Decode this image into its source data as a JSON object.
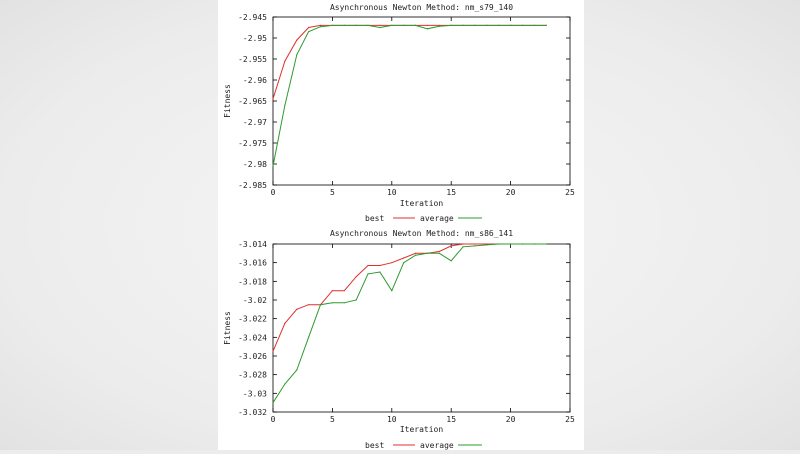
{
  "chart_data": [
    {
      "type": "line",
      "title": "Asynchronous Newton Method: nm_s79_140",
      "xlabel": "Iteration",
      "ylabel": "Fitness",
      "xlim": [
        0,
        25
      ],
      "ylim": [
        -2.985,
        -2.945
      ],
      "xticks": [
        0,
        5,
        10,
        15,
        20,
        25
      ],
      "xtick_labels": [
        "0",
        "5",
        "10",
        "15",
        "20",
        "25"
      ],
      "yticks": [
        -2.945,
        -2.95,
        -2.955,
        -2.96,
        -2.965,
        -2.97,
        -2.975,
        -2.98,
        -2.985
      ],
      "ytick_labels": [
        "-2.945",
        "-2.95",
        "-2.955",
        "-2.96",
        "-2.965",
        "-2.97",
        "-2.975",
        "-2.98",
        "-2.985"
      ],
      "grid": false,
      "legend_position": "bottom-center",
      "x": [
        0,
        1,
        2,
        3,
        4,
        5,
        6,
        7,
        8,
        9,
        10,
        11,
        12,
        13,
        14,
        15,
        16,
        17,
        18,
        19,
        20,
        21,
        22,
        23
      ],
      "series": [
        {
          "name": "best",
          "color": "#e03030",
          "values": [
            -2.9645,
            -2.9555,
            -2.9505,
            -2.9475,
            -2.947,
            -2.947,
            -2.947,
            -2.947,
            -2.947,
            -2.947,
            -2.947,
            -2.947,
            -2.947,
            -2.947,
            -2.947,
            -2.947,
            -2.947,
            -2.947,
            -2.947,
            -2.947,
            -2.947,
            -2.947,
            -2.947,
            -2.947
          ]
        },
        {
          "name": "average",
          "color": "#2e9a2e",
          "values": [
            -2.9805,
            -2.966,
            -2.954,
            -2.9485,
            -2.9473,
            -2.947,
            -2.947,
            -2.947,
            -2.947,
            -2.9475,
            -2.947,
            -2.947,
            -2.947,
            -2.9478,
            -2.9472,
            -2.947,
            -2.947,
            -2.947,
            -2.947,
            -2.947,
            -2.947,
            -2.947,
            -2.947,
            -2.947
          ]
        }
      ]
    },
    {
      "type": "line",
      "title": "Asynchronous Newton Method: nm_s86_141",
      "xlabel": "Iteration",
      "ylabel": "Fitness",
      "xlim": [
        0,
        25
      ],
      "ylim": [
        -3.032,
        -3.014
      ],
      "xticks": [
        0,
        5,
        10,
        15,
        20,
        25
      ],
      "xtick_labels": [
        "0",
        "5",
        "10",
        "15",
        "20",
        "25"
      ],
      "yticks": [
        -3.014,
        -3.016,
        -3.018,
        -3.02,
        -3.022,
        -3.024,
        -3.026,
        -3.028,
        -3.03,
        -3.032
      ],
      "ytick_labels": [
        "-3.014",
        "-3.016",
        "-3.018",
        "-3.02",
        "-3.022",
        "-3.024",
        "-3.026",
        "-3.028",
        "-3.03",
        "-3.032"
      ],
      "grid": false,
      "legend_position": "bottom-center",
      "x": [
        0,
        1,
        2,
        3,
        4,
        5,
        6,
        7,
        8,
        9,
        10,
        11,
        12,
        13,
        14,
        15,
        16,
        17,
        18,
        19,
        20,
        21,
        22,
        23
      ],
      "series": [
        {
          "name": "best",
          "color": "#e03030",
          "values": [
            -3.0255,
            -3.0225,
            -3.021,
            -3.0205,
            -3.0205,
            -3.019,
            -3.019,
            -3.0175,
            -3.0163,
            -3.0163,
            -3.016,
            -3.0155,
            -3.015,
            -3.015,
            -3.0148,
            -3.0142,
            -3.014,
            -3.014,
            -3.014,
            -3.014,
            -3.014,
            -3.014,
            -3.014,
            -3.014
          ]
        },
        {
          "name": "average",
          "color": "#2e9a2e",
          "values": [
            -3.031,
            -3.029,
            -3.0275,
            -3.024,
            -3.0205,
            -3.0203,
            -3.0203,
            -3.02,
            -3.0172,
            -3.017,
            -3.019,
            -3.016,
            -3.0152,
            -3.015,
            -3.015,
            -3.0158,
            -3.0143,
            -3.0142,
            -3.0141,
            -3.014,
            -3.014,
            -3.014,
            -3.014,
            -3.014
          ]
        }
      ]
    }
  ]
}
